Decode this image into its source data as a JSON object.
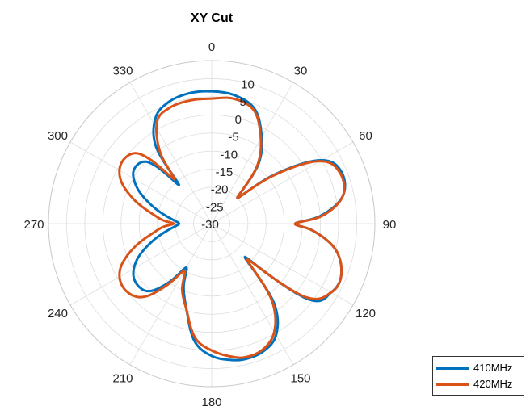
{
  "chart_data": {
    "type": "polar-line",
    "title": "XY Cut",
    "theta_zero": "top",
    "theta_direction": "clockwise",
    "theta_ticks": [
      0,
      30,
      60,
      90,
      120,
      150,
      180,
      210,
      240,
      270,
      300,
      330
    ],
    "theta_tick_labels": [
      "0",
      "30",
      "60",
      "90",
      "120",
      "150",
      "180",
      "210",
      "240",
      "270",
      "300",
      "330"
    ],
    "rlim": [
      -30,
      15
    ],
    "r_ticks": [
      -30,
      -25,
      -20,
      -15,
      -10,
      -5,
      0,
      5,
      10
    ],
    "r_tick_labels": [
      "-30",
      "-25",
      "-20",
      "-15",
      "-10",
      "-5",
      "0",
      "5",
      "10"
    ],
    "grid": true,
    "legend_position": "bottom-right",
    "series": [
      {
        "name": "410MHz",
        "color": "#0072BD",
        "theta": [
          0,
          10,
          20,
          28,
          38,
          45,
          52,
          60,
          68,
          78,
          86,
          90,
          94,
          102,
          112,
          120,
          128,
          135,
          142,
          150,
          158,
          166,
          172,
          180,
          188,
          196,
          204,
          210,
          216,
          222,
          228,
          236,
          244,
          252,
          260,
          266,
          270,
          274,
          280,
          288,
          296,
          304,
          312,
          316,
          320,
          324,
          332,
          340,
          350,
          360
        ],
        "r": [
          6.5,
          6.0,
          4.0,
          -1.0,
          -9.0,
          -20.0,
          -8.0,
          5.0,
          8.5,
          7.0,
          0.0,
          -7.0,
          -2.0,
          5.0,
          8.5,
          8.0,
          4.0,
          -17.0,
          -2.0,
          5.5,
          8.0,
          8.5,
          8.0,
          6.5,
          3.0,
          -5.0,
          -11.0,
          -16.0,
          -10.0,
          -5.0,
          -3.5,
          -4.0,
          -7.0,
          -12.0,
          -17.0,
          -20.0,
          -21.0,
          -20.0,
          -17.0,
          -12.0,
          -7.0,
          -4.0,
          -4.5,
          -8.0,
          -16.0,
          -4.0,
          3.0,
          5.5,
          6.5,
          6.5
        ]
      },
      {
        "name": "420MHz",
        "color": "#D95319",
        "theta": [
          0,
          10,
          20,
          28,
          38,
          45,
          52,
          60,
          68,
          78,
          86,
          90,
          94,
          102,
          112,
          120,
          128,
          135,
          142,
          150,
          158,
          166,
          172,
          180,
          188,
          196,
          204,
          210,
          216,
          222,
          228,
          236,
          244,
          252,
          260,
          266,
          270,
          274,
          280,
          288,
          296,
          304,
          312,
          316,
          320,
          324,
          332,
          340,
          350,
          360
        ],
        "r": [
          4.5,
          5.0,
          3.5,
          -1.5,
          -9.5,
          -20.0,
          -8.5,
          4.5,
          8.0,
          7.0,
          0.5,
          -7.0,
          -2.0,
          5.0,
          8.5,
          8.0,
          3.0,
          -16.0,
          -3.0,
          4.5,
          7.5,
          8.0,
          7.0,
          5.0,
          2.0,
          -5.0,
          -10.0,
          -15.0,
          -9.0,
          -3.0,
          -0.5,
          0.0,
          -2.0,
          -7.0,
          -13.0,
          -16.5,
          -19.5,
          -16.5,
          -13.0,
          -7.0,
          -2.0,
          0.0,
          -1.0,
          -5.0,
          -14.0,
          -6.0,
          2.0,
          4.0,
          4.5,
          4.5
        ]
      }
    ]
  }
}
